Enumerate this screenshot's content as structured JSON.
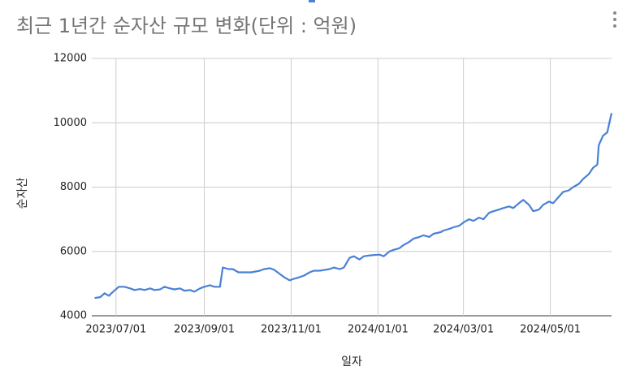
{
  "chart_data": {
    "type": "line",
    "title": "최근 1년간 순자산 규모 변화(단위 : 억원)",
    "y_label": "순자산",
    "x_label": "일자",
    "xlim": [
      "2023/06/14",
      "2024/06/13"
    ],
    "xticks": [
      "2023/07/01",
      "2023/09/01",
      "2023/11/01",
      "2024/01/01",
      "2024/03/01",
      "2024/05/01"
    ],
    "ylim": [
      4000,
      12000
    ],
    "yticks": [
      4000,
      6000,
      8000,
      10000,
      12000
    ],
    "grid": true,
    "x": [
      "2023/06/16",
      "2023/06/20",
      "2023/06/23",
      "2023/06/26",
      "2023/06/29",
      "2023/07/03",
      "2023/07/07",
      "2023/07/11",
      "2023/07/14",
      "2023/07/18",
      "2023/07/21",
      "2023/07/25",
      "2023/07/28",
      "2023/08/01",
      "2023/08/04",
      "2023/08/08",
      "2023/08/11",
      "2023/08/15",
      "2023/08/18",
      "2023/08/22",
      "2023/08/25",
      "2023/08/29",
      "2023/09/01",
      "2023/09/05",
      "2023/09/08",
      "2023/09/12",
      "2023/09/14",
      "2023/09/18",
      "2023/09/21",
      "2023/09/25",
      "2023/09/28",
      "2023/10/04",
      "2023/10/10",
      "2023/10/13",
      "2023/10/17",
      "2023/10/20",
      "2023/10/24",
      "2023/10/27",
      "2023/10/31",
      "2023/11/03",
      "2023/11/07",
      "2023/11/10",
      "2023/11/14",
      "2023/11/17",
      "2023/11/21",
      "2023/11/24",
      "2023/11/28",
      "2023/12/01",
      "2023/12/05",
      "2023/12/08",
      "2023/12/12",
      "2023/12/15",
      "2023/12/19",
      "2023/12/22",
      "2023/12/27",
      "2024/01/02",
      "2024/01/05",
      "2024/01/09",
      "2024/01/12",
      "2024/01/16",
      "2024/01/19",
      "2024/01/23",
      "2024/01/26",
      "2024/01/30",
      "2024/02/02",
      "2024/02/06",
      "2024/02/09",
      "2024/02/14",
      "2024/02/16",
      "2024/02/20",
      "2024/02/23",
      "2024/02/27",
      "2024/03/01",
      "2024/03/05",
      "2024/03/08",
      "2024/03/12",
      "2024/03/15",
      "2024/03/19",
      "2024/03/22",
      "2024/03/26",
      "2024/03/29",
      "2024/04/02",
      "2024/04/05",
      "2024/04/09",
      "2024/04/12",
      "2024/04/16",
      "2024/04/19",
      "2024/04/23",
      "2024/04/26",
      "2024/04/30",
      "2024/05/03",
      "2024/05/07",
      "2024/05/10",
      "2024/05/14",
      "2024/05/17",
      "2024/05/21",
      "2024/05/24",
      "2024/05/28",
      "2024/05/31",
      "2024/06/03",
      "2024/06/04",
      "2024/06/07",
      "2024/06/10",
      "2024/06/12",
      "2024/06/13"
    ],
    "series": [
      {
        "color": "#4a80d6",
        "values": [
          4550,
          4580,
          4700,
          4620,
          4750,
          4900,
          4900,
          4850,
          4800,
          4830,
          4800,
          4850,
          4800,
          4820,
          4900,
          4850,
          4820,
          4850,
          4780,
          4800,
          4750,
          4850,
          4900,
          4950,
          4900,
          4900,
          5500,
          5450,
          5450,
          5350,
          5350,
          5350,
          5400,
          5450,
          5480,
          5430,
          5300,
          5200,
          5100,
          5150,
          5200,
          5250,
          5350,
          5400,
          5400,
          5420,
          5450,
          5500,
          5450,
          5500,
          5800,
          5850,
          5750,
          5850,
          5880,
          5900,
          5850,
          6000,
          6050,
          6100,
          6200,
          6300,
          6400,
          6450,
          6500,
          6450,
          6550,
          6600,
          6650,
          6700,
          6750,
          6800,
          6900,
          7000,
          6950,
          7050,
          7000,
          7200,
          7250,
          7300,
          7350,
          7400,
          7350,
          7500,
          7600,
          7450,
          7250,
          7300,
          7450,
          7550,
          7500,
          7700,
          7850,
          7900,
          8000,
          8100,
          8250,
          8400,
          8600,
          8700,
          9300,
          9600,
          9700,
          10100,
          10300
        ]
      }
    ]
  }
}
